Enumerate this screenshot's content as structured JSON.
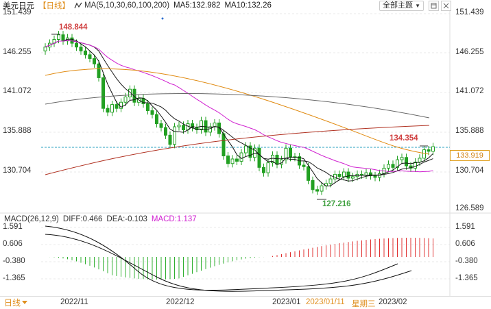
{
  "header": {
    "symbol": "美元日元",
    "period": "【日线】",
    "ma_params": "MA(5,10,30,60,100,200)",
    "ma5": "MA5:132.982",
    "ma10": "MA10:132.26",
    "theme_button": "全部主题",
    "theme_caret_icon": "caret-down-icon",
    "tool_icons": [
      "expand-icon",
      "close-icon"
    ]
  },
  "price_axis": {
    "left": [
      "151.439",
      "146.255",
      "141.072",
      "135.888",
      "130.704"
    ],
    "right": [
      "151.439",
      "146.255",
      "141.072",
      "135.888",
      "130.704",
      "126.589"
    ],
    "current_price": "133.919"
  },
  "annotations": {
    "high": "148.844",
    "low": "127.216",
    "recent_high": "134.354"
  },
  "macd": {
    "label": "MACD(26,12,9)",
    "diff": "DIFF:0.466",
    "dea": "DEA:-0.103",
    "macd": "MACD:1.137",
    "axis_left": [
      "1.591",
      "0.606",
      "-0.380",
      "-1.365"
    ],
    "axis_right": [
      "1.591",
      "0.606",
      "-0.380",
      "-1.365"
    ]
  },
  "bottom": {
    "period_button": "日线",
    "dates": [
      "2022/11",
      "2022/12",
      "2023/01"
    ],
    "hover_date": "2023/01/11",
    "hover_weekday": "星期三",
    "last_date": "2023/02"
  },
  "colors": {
    "up": "#22a022",
    "down": "#22a022",
    "ma5": "#111111",
    "ma10": "#1a1a1a",
    "ma30": "#d020d0",
    "ma60": "#e08a10",
    "ma100": "#666666",
    "ma200": "#b03020",
    "price_line": "#2aa0c0",
    "accent": "#e09020"
  }
}
